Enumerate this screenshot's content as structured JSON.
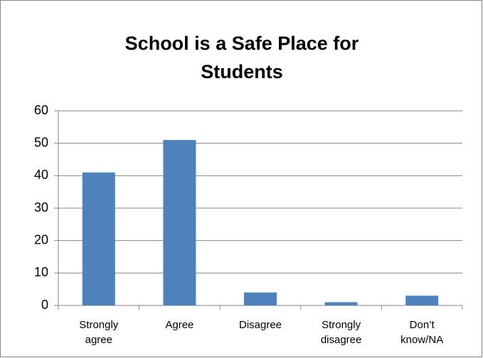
{
  "chart_data": {
    "type": "bar",
    "title": "School is a Safe Place for Students",
    "categories": [
      "Strongly agree",
      "Agree",
      "Disagree",
      "Strongly disagree",
      "Don’t know/NA"
    ],
    "values": [
      41,
      51,
      4,
      1,
      3
    ],
    "color": "#4f81bd",
    "ylim": [
      0,
      60
    ],
    "yticks": [
      0,
      10,
      20,
      30,
      40,
      50,
      60
    ],
    "grid": true
  }
}
